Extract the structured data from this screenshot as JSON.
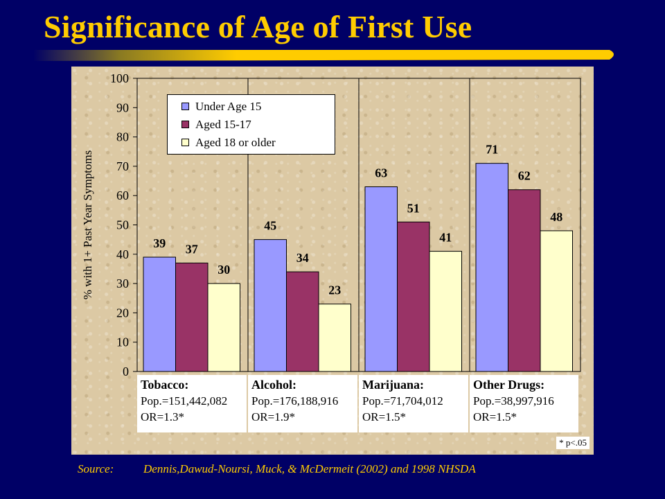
{
  "slide": {
    "title": "Significance of Age of First Use",
    "source_label": "Source:",
    "source_text": "Dennis,Dawud-Noursi, Muck, & McDermeit (2002) and 1998 NHSDA",
    "footnote": "* p<.05"
  },
  "colors": {
    "background": "#000066",
    "title": "#FFCC00",
    "under15": "#9999FF",
    "aged15_17": "#993366",
    "aged18plus": "#FFFFCC"
  },
  "chart_data": {
    "type": "bar",
    "title": "",
    "ylabel": "% with 1+ Past Year Symptoms",
    "xlabel": "",
    "ylim": [
      0,
      100
    ],
    "yticks": [
      0,
      10,
      20,
      30,
      40,
      50,
      60,
      70,
      80,
      90,
      100
    ],
    "grid": false,
    "legend_position": "top-left",
    "categories": [
      "Tobacco",
      "Alcohol",
      "Marijuana",
      "Other Drugs"
    ],
    "series": [
      {
        "name": "Under Age 15",
        "color": "#9999FF",
        "values": [
          39,
          45,
          63,
          71
        ]
      },
      {
        "name": "Aged 15-17",
        "color": "#993366",
        "values": [
          37,
          34,
          51,
          62
        ]
      },
      {
        "name": "Aged 18 or older",
        "color": "#FFFFCC",
        "values": [
          30,
          23,
          41,
          48
        ]
      }
    ],
    "category_info": [
      {
        "name": "Tobacco:",
        "pop": "Pop.=151,442,082",
        "or": "OR=1.3*"
      },
      {
        "name": "Alcohol:",
        "pop": "Pop.=176,188,916",
        "or": "OR=1.9*"
      },
      {
        "name": "Marijuana:",
        "pop": "Pop.=71,704,012",
        "or": "OR=1.5*"
      },
      {
        "name": "Other Drugs:",
        "pop": "Pop.=38,997,916",
        "or": "OR=1.5*"
      }
    ]
  }
}
